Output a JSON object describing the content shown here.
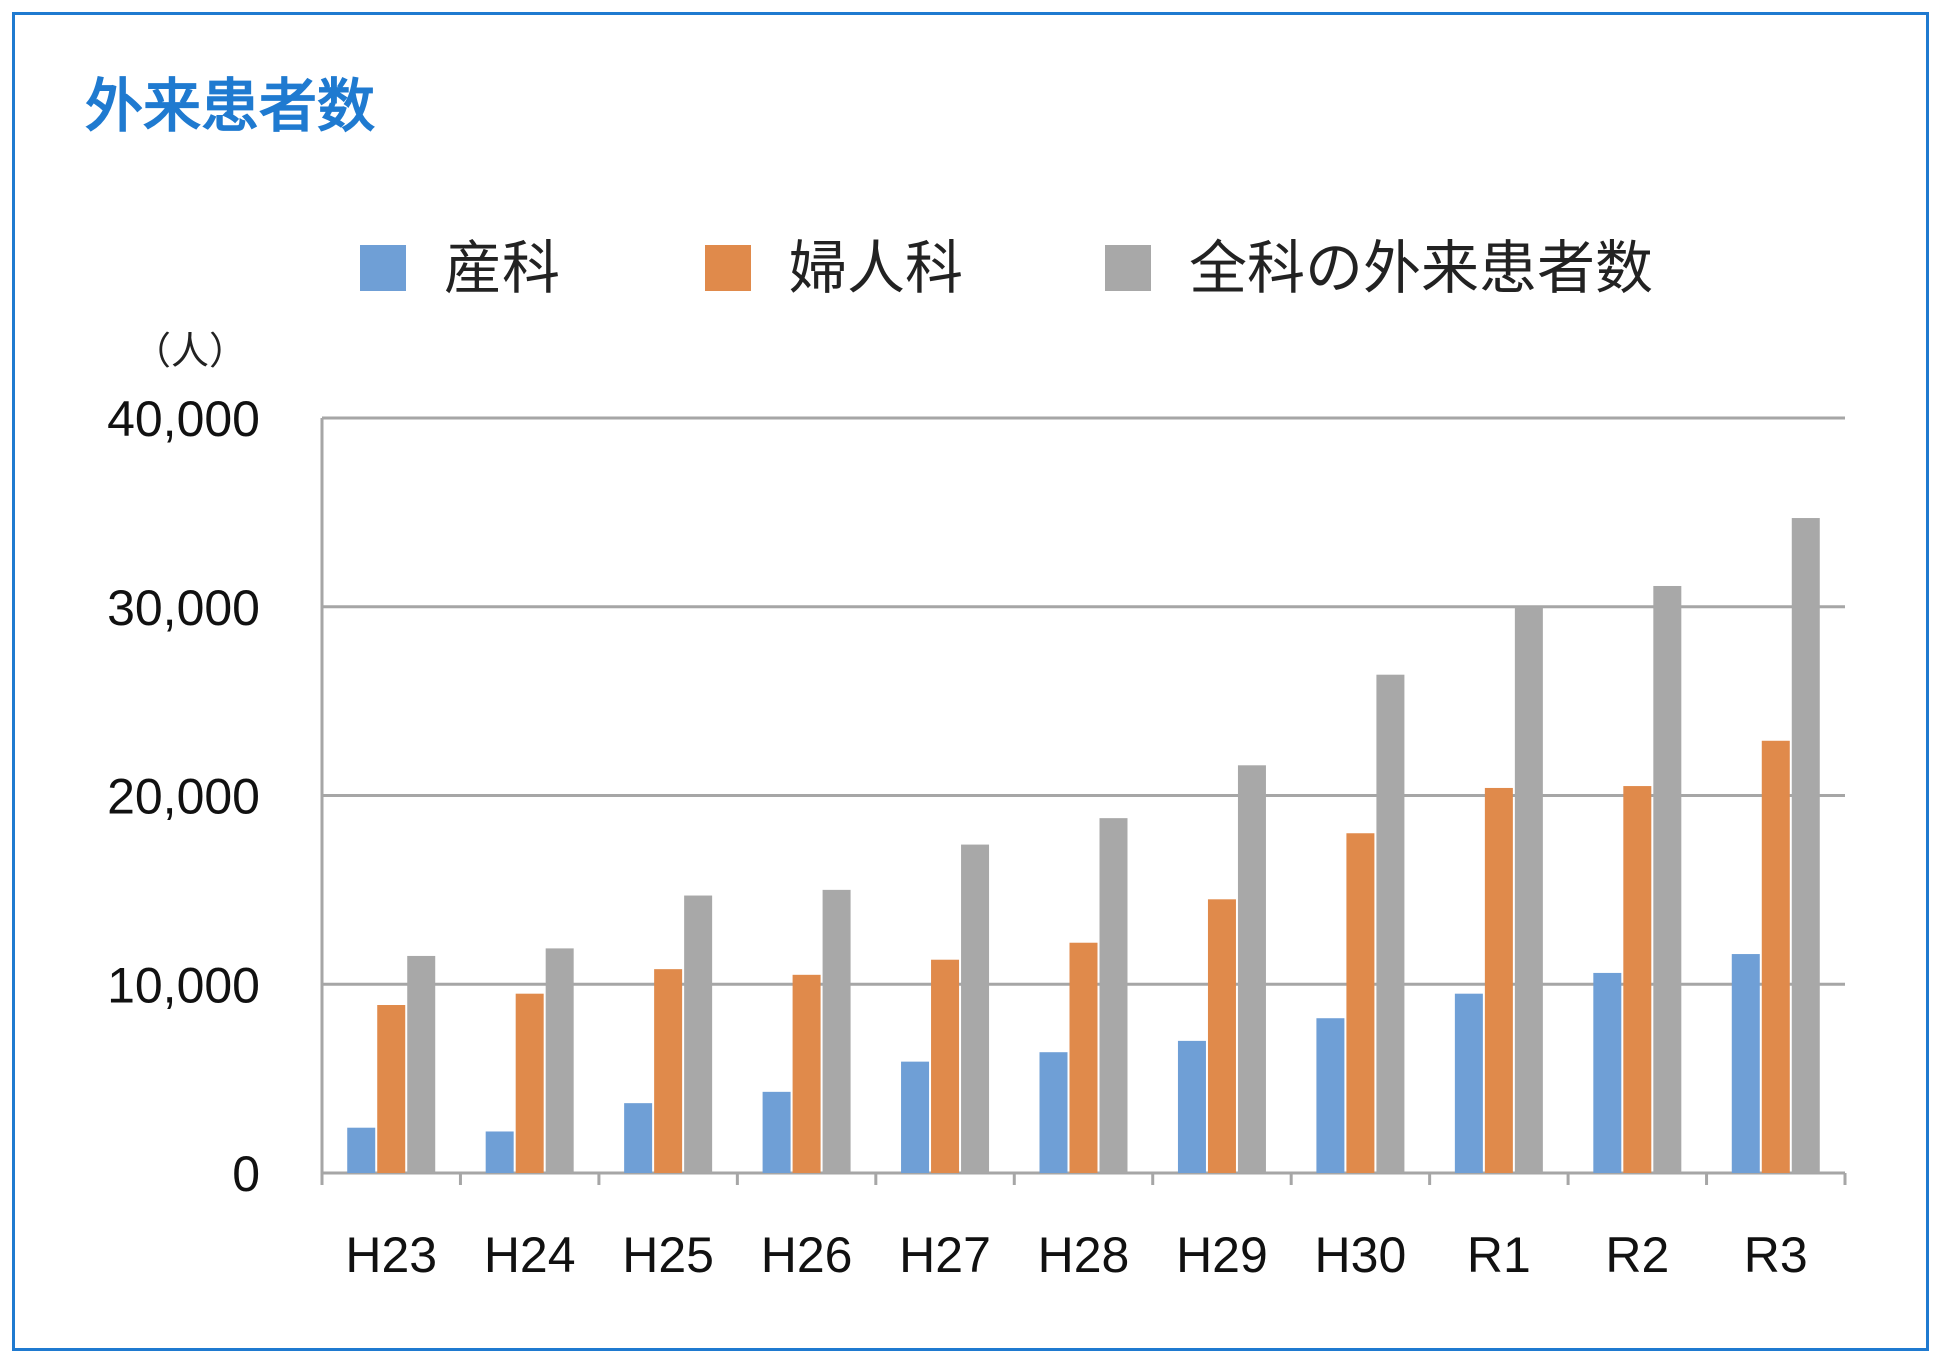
{
  "colors": {
    "frame": "#1f7ad0",
    "title": "#1f7ad0",
    "grid": "#a6a6a6",
    "axis": "#a6a6a6"
  },
  "chart_data": {
    "type": "bar",
    "title": "外来患者数",
    "unit_label": "（人）",
    "categories": [
      "H23",
      "H24",
      "H25",
      "H26",
      "H27",
      "H28",
      "H29",
      "H30",
      "R1",
      "R2",
      "R3"
    ],
    "series": [
      {
        "name": "産科",
        "color": "#6f9fd6",
        "values": [
          2400,
          2200,
          3700,
          4300,
          5900,
          6400,
          7000,
          8200,
          9500,
          10600,
          11600
        ]
      },
      {
        "name": "婦人科",
        "color": "#e08a4b",
        "values": [
          8900,
          9500,
          10800,
          10500,
          11300,
          12200,
          14500,
          18000,
          20400,
          20500,
          22900
        ]
      },
      {
        "name": "全科の外来患者数",
        "color": "#a8a8a8",
        "values": [
          11500,
          11900,
          14700,
          15000,
          17400,
          18800,
          21600,
          26400,
          30000,
          31100,
          34700
        ]
      }
    ],
    "y_ticks": [
      "0",
      "10,000",
      "20,000",
      "30,000",
      "40,000"
    ],
    "ylim": [
      0,
      40000
    ],
    "grid": true,
    "legend_position": "top"
  }
}
